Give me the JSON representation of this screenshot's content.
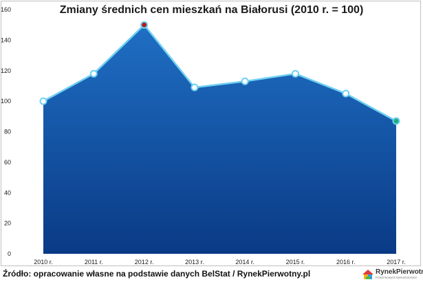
{
  "chart_data": {
    "type": "area",
    "title": "Zmiany średnich cen mieszkań na Białorusi (2010 r. = 100)",
    "xlabel": "",
    "ylabel": "",
    "categories": [
      "2010 r.",
      "2011 r.",
      "2012 r.",
      "2013 r.",
      "2014 r.",
      "2015 r.",
      "2016 r.",
      "2017 r."
    ],
    "series": [
      {
        "values": [
          100,
          118,
          150,
          109,
          113,
          118,
          105,
          87
        ]
      }
    ],
    "ylim": [
      0,
      160
    ],
    "yticks": [
      0,
      20,
      40,
      60,
      80,
      100,
      120,
      140,
      160
    ],
    "grid": false,
    "legend": "none",
    "colors": {
      "area_top": "#1f6fc4",
      "area_bottom": "#0a3a85",
      "line": "#6fd0f2",
      "marker_fill": "#ffffff",
      "marker_max": "#b01e24",
      "marker_last": "#1fae7c"
    }
  },
  "footer": {
    "source": "Źródło: opracowanie własne na podstawie danych BelStat / RynekPierwotny.pl"
  },
  "logo": {
    "icon": "house-logo-icon",
    "name": "RynekPierwotny",
    "tagline": "Portal Nowych Nieruchomości"
  }
}
